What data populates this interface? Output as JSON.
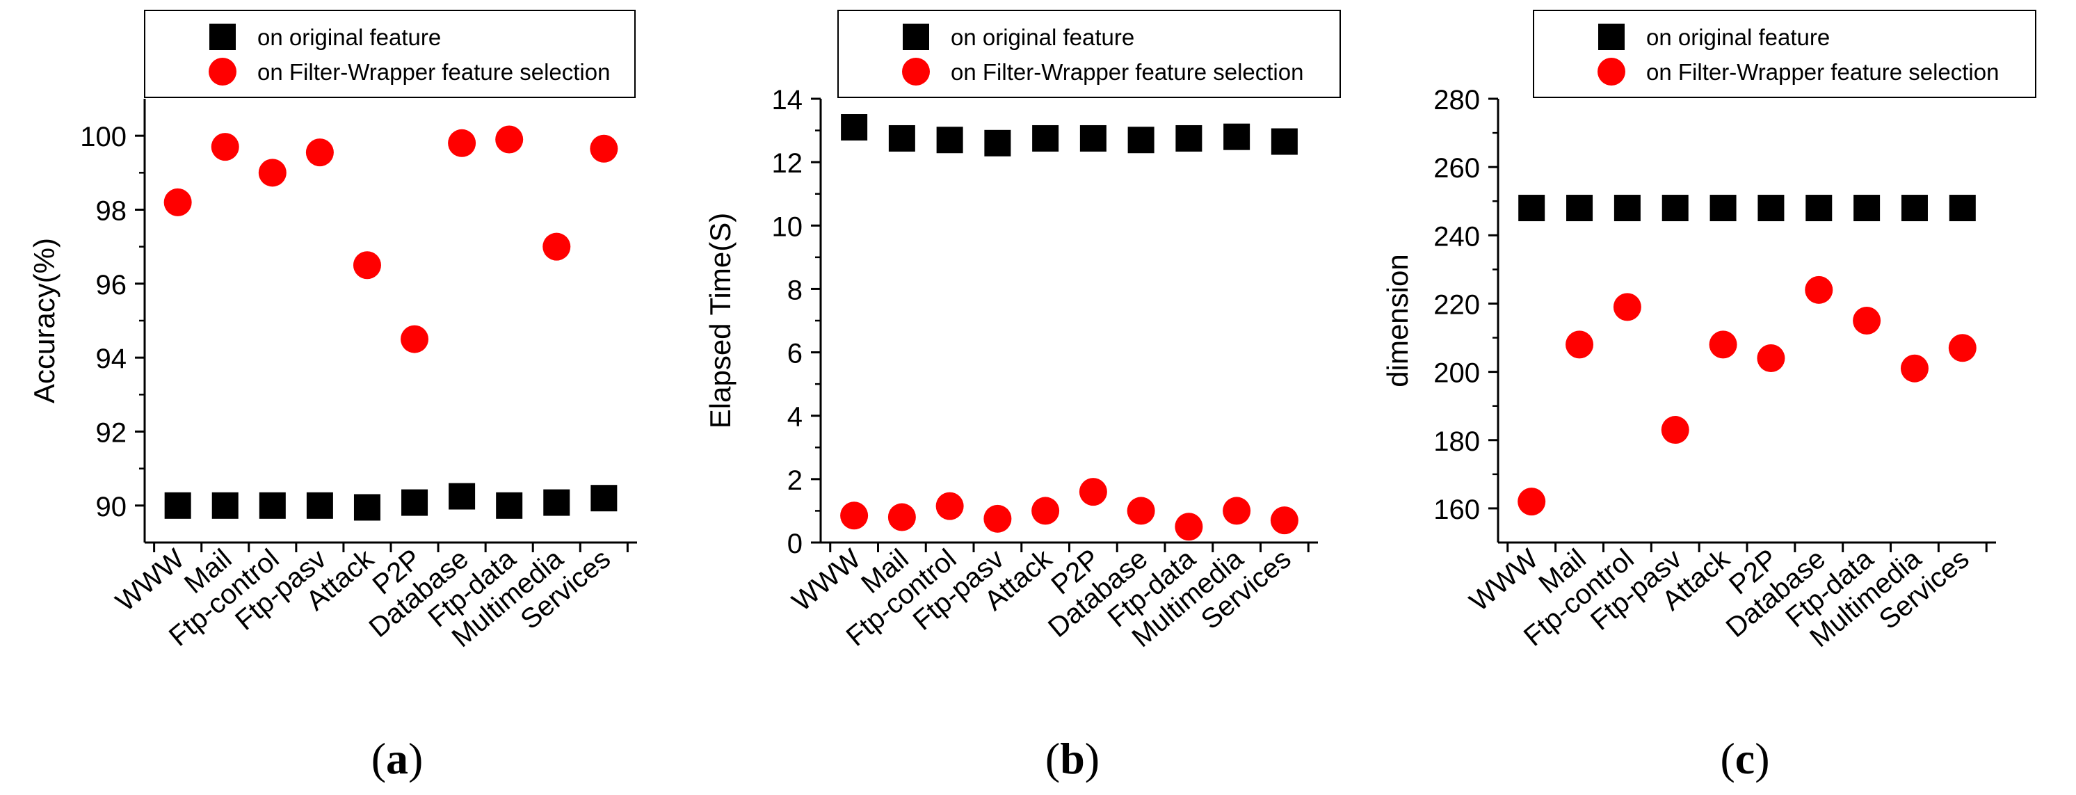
{
  "figure": {
    "panel_labels": [
      {
        "open": "(",
        "letter": "a",
        "close": ")"
      },
      {
        "open": "(",
        "letter": "b",
        "close": ")"
      },
      {
        "open": "(",
        "letter": "c",
        "close": ")"
      }
    ]
  },
  "colors": {
    "original": "#000000",
    "filter_wrapper": "#ff0000",
    "axis": "#000000",
    "background": "#ffffff"
  },
  "chart_data": [
    {
      "type": "scatter",
      "panel": "a",
      "categories": [
        "WWW",
        "Mail",
        "Ftp-control",
        "Ftp-pasv",
        "Attack",
        "P2P",
        "Database",
        "Ftp-data",
        "Multimedia",
        "Services"
      ],
      "series": [
        {
          "name": "on original feature",
          "marker": "square",
          "color": "#000000",
          "values": [
            90.0,
            90.0,
            90.0,
            90.0,
            89.95,
            90.08,
            90.25,
            90.0,
            90.08,
            90.2
          ]
        },
        {
          "name": "on Filter-Wrapper feature selection",
          "marker": "circle",
          "color": "#ff0000",
          "values": [
            98.2,
            99.7,
            99.0,
            99.55,
            96.5,
            94.5,
            99.8,
            99.9,
            97.0,
            99.65
          ]
        }
      ],
      "xlabel": "",
      "ylabel": "Accuracy(%)",
      "ylim": [
        89,
        101
      ],
      "yticks": [
        90,
        92,
        94,
        96,
        98,
        100
      ],
      "legend": "top"
    },
    {
      "type": "scatter",
      "panel": "b",
      "categories": [
        "WWW",
        "Mail",
        "Ftp-control",
        "Ftp-pasv",
        "Attack",
        "P2P",
        "Database",
        "Ftp-data",
        "Multimedia",
        "Services"
      ],
      "series": [
        {
          "name": "on original feature",
          "marker": "square",
          "color": "#000000",
          "values": [
            13.1,
            12.75,
            12.7,
            12.6,
            12.75,
            12.75,
            12.7,
            12.75,
            12.8,
            12.65
          ]
        },
        {
          "name": "on Filter-Wrapper feature selection",
          "marker": "circle",
          "color": "#ff0000",
          "values": [
            0.85,
            0.8,
            1.15,
            0.75,
            1.0,
            1.6,
            1.0,
            0.5,
            1.0,
            0.7
          ]
        }
      ],
      "xlabel": "",
      "ylabel": "Elapsed Time(S)",
      "ylim": [
        0,
        14
      ],
      "yticks": [
        0,
        2,
        4,
        6,
        8,
        10,
        12,
        14
      ],
      "legend": "top"
    },
    {
      "type": "scatter",
      "panel": "c",
      "categories": [
        "WWW",
        "Mail",
        "Ftp-control",
        "Ftp-pasv",
        "Attack",
        "P2P",
        "Database",
        "Ftp-data",
        "Multimedia",
        "Services"
      ],
      "series": [
        {
          "name": "on original feature",
          "marker": "square",
          "color": "#000000",
          "values": [
            248,
            248,
            248,
            248,
            248,
            248,
            248,
            248,
            248,
            248
          ]
        },
        {
          "name": "on Filter-Wrapper feature selection",
          "marker": "circle",
          "color": "#ff0000",
          "values": [
            162,
            208,
            219,
            183,
            208,
            204,
            224,
            215,
            201,
            207
          ]
        }
      ],
      "xlabel": "",
      "ylabel": "dimension",
      "ylim": [
        150,
        280
      ],
      "yticks": [
        160,
        180,
        200,
        220,
        240,
        260,
        280
      ],
      "legend": "top"
    }
  ]
}
